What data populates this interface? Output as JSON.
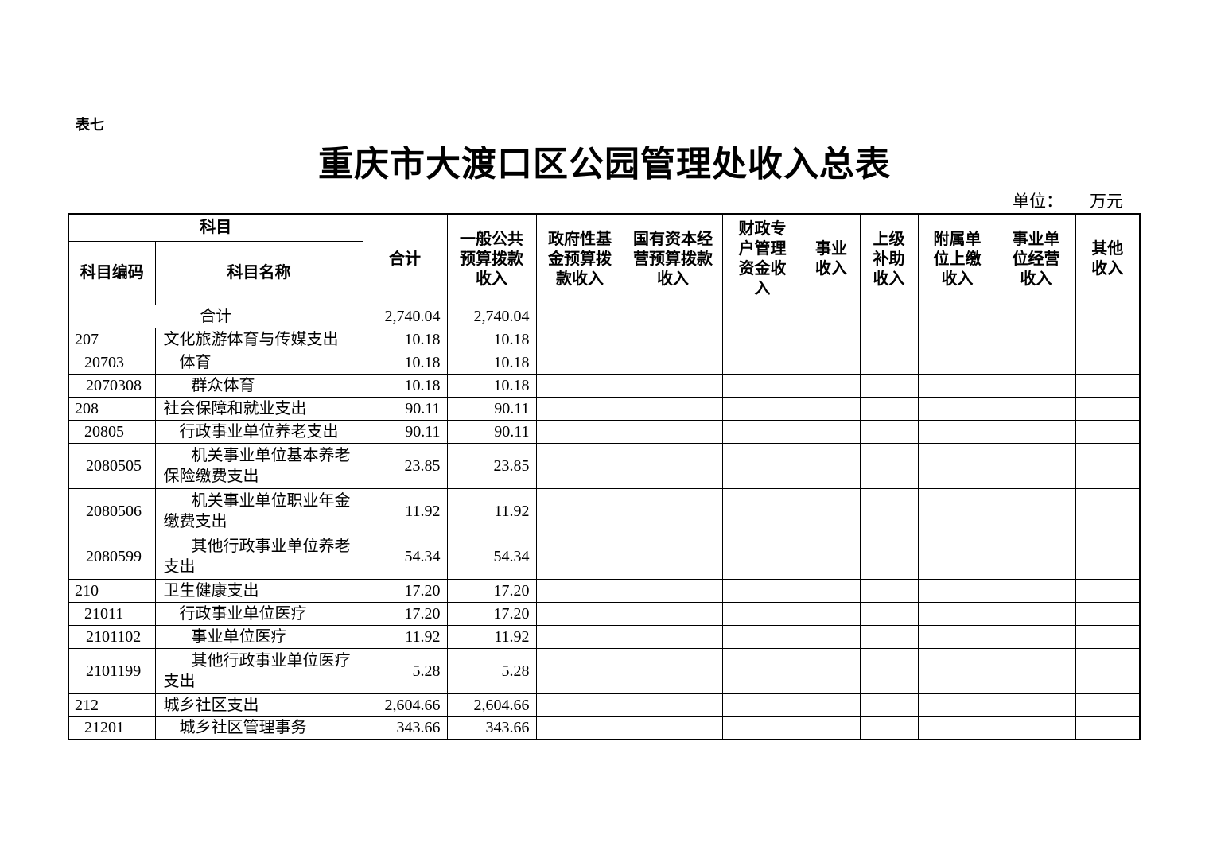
{
  "page": {
    "table_label": "表七",
    "title": "重庆市大渡口区公园管理处收入总表",
    "unit_label": "单位：",
    "unit_value": "万元"
  },
  "table": {
    "header": {
      "subject_group": "科目",
      "subject_code": "科目编码",
      "subject_name": "科目名称"
    },
    "header_cols": [
      "合计",
      "一般公共\n预算拨款\n收入",
      "政府性基\n金预算拨\n款收入",
      "国有资本经\n营预算拨款\n收入",
      "财政专\n户管理\n资金收\n入",
      "事业\n收入",
      "上级\n补助\n收入",
      "附属单\n位上缴\n收入",
      "事业单\n位经营\n收入",
      "其他\n收入"
    ],
    "rows": [
      {
        "merged": true,
        "code": "",
        "name": "合计",
        "level": 0,
        "tall": false,
        "values": [
          "2,740.04",
          "2,740.04",
          "",
          "",
          "",
          "",
          "",
          "",
          "",
          ""
        ]
      },
      {
        "merged": false,
        "code": "207",
        "name": "文化旅游体育与传媒支出",
        "level": 1,
        "tall": false,
        "values": [
          "10.18",
          "10.18",
          "",
          "",
          "",
          "",
          "",
          "",
          "",
          ""
        ]
      },
      {
        "merged": false,
        "code": "20703",
        "name": "体育",
        "level": 2,
        "tall": false,
        "values": [
          "10.18",
          "10.18",
          "",
          "",
          "",
          "",
          "",
          "",
          "",
          ""
        ]
      },
      {
        "merged": false,
        "code": "2070308",
        "name": "群众体育",
        "level": 3,
        "tall": false,
        "values": [
          "10.18",
          "10.18",
          "",
          "",
          "",
          "",
          "",
          "",
          "",
          ""
        ]
      },
      {
        "merged": false,
        "code": "208",
        "name": "社会保障和就业支出",
        "level": 1,
        "tall": false,
        "values": [
          "90.11",
          "90.11",
          "",
          "",
          "",
          "",
          "",
          "",
          "",
          ""
        ]
      },
      {
        "merged": false,
        "code": "20805",
        "name": "行政事业单位养老支出",
        "level": 2,
        "tall": false,
        "values": [
          "90.11",
          "90.11",
          "",
          "",
          "",
          "",
          "",
          "",
          "",
          ""
        ]
      },
      {
        "merged": false,
        "code": "2080505",
        "name": "机关事业单位基本养老保险缴费支出",
        "level": 3,
        "tall": true,
        "values": [
          "23.85",
          "23.85",
          "",
          "",
          "",
          "",
          "",
          "",
          "",
          ""
        ]
      },
      {
        "merged": false,
        "code": "2080506",
        "name": "机关事业单位职业年金缴费支出",
        "level": 3,
        "tall": true,
        "values": [
          "11.92",
          "11.92",
          "",
          "",
          "",
          "",
          "",
          "",
          "",
          ""
        ]
      },
      {
        "merged": false,
        "code": "2080599",
        "name": "其他行政事业单位养老支出",
        "level": 3,
        "tall": true,
        "values": [
          "54.34",
          "54.34",
          "",
          "",
          "",
          "",
          "",
          "",
          "",
          ""
        ]
      },
      {
        "merged": false,
        "code": "210",
        "name": "卫生健康支出",
        "level": 1,
        "tall": false,
        "values": [
          "17.20",
          "17.20",
          "",
          "",
          "",
          "",
          "",
          "",
          "",
          ""
        ]
      },
      {
        "merged": false,
        "code": "21011",
        "name": "行政事业单位医疗",
        "level": 2,
        "tall": false,
        "values": [
          "17.20",
          "17.20",
          "",
          "",
          "",
          "",
          "",
          "",
          "",
          ""
        ]
      },
      {
        "merged": false,
        "code": "2101102",
        "name": "事业单位医疗",
        "level": 3,
        "tall": false,
        "values": [
          "11.92",
          "11.92",
          "",
          "",
          "",
          "",
          "",
          "",
          "",
          ""
        ]
      },
      {
        "merged": false,
        "code": "2101199",
        "name": "其他行政事业单位医疗支出",
        "level": 3,
        "tall": true,
        "values": [
          "5.28",
          "5.28",
          "",
          "",
          "",
          "",
          "",
          "",
          "",
          ""
        ]
      },
      {
        "merged": false,
        "code": "212",
        "name": "城乡社区支出",
        "level": 1,
        "tall": false,
        "values": [
          "2,604.66",
          "2,604.66",
          "",
          "",
          "",
          "",
          "",
          "",
          "",
          ""
        ]
      },
      {
        "merged": false,
        "code": "21201",
        "name": "城乡社区管理事务",
        "level": 2,
        "tall": false,
        "values": [
          "343.66",
          "343.66",
          "",
          "",
          "",
          "",
          "",
          "",
          "",
          ""
        ]
      }
    ]
  }
}
